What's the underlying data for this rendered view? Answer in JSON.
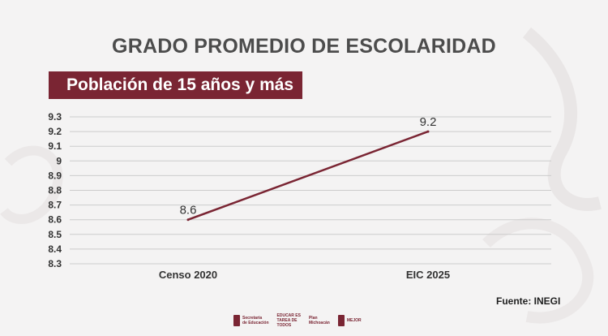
{
  "header": {
    "title": "GRADO PROMEDIO DE ESCOLARIDAD",
    "subtitle": "Población de 15 años y más"
  },
  "footer": {
    "source": "Fuente: INEGI",
    "logos": [
      {
        "name": "Secretaría de Educación"
      },
      {
        "name": "Educar es tarea de todos"
      },
      {
        "name": "Plan Michoacán por la Paz y la Justicia"
      },
      {
        "name": "Michoacán se hace mejor"
      }
    ]
  },
  "colors": {
    "accent": "#7a2533",
    "line": "#7a2533",
    "grid": "#cccccc",
    "text": "#333333"
  },
  "chart_data": {
    "type": "line",
    "categories": [
      "Censo 2020",
      "EIC 2025"
    ],
    "series": [
      {
        "values": [
          8.6,
          9.2
        ]
      }
    ],
    "data_labels": [
      "8.6",
      "9.2"
    ],
    "yticks": [
      "8.3",
      "8.4",
      "8.5",
      "8.6",
      "8.7",
      "8.8",
      "8.9",
      "9",
      "9.1",
      "9.2",
      "9.3"
    ],
    "ylim": [
      8.3,
      9.3
    ],
    "grid": true
  }
}
